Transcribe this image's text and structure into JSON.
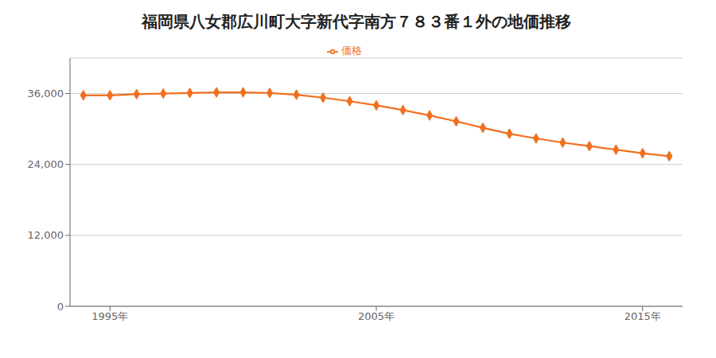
{
  "chart_data": {
    "type": "line",
    "title": "福岡県八女郡広川町大字新代字南方７８３番１外の地価推移",
    "x": [
      1994,
      1995,
      1996,
      1997,
      1998,
      1999,
      2000,
      2001,
      2002,
      2003,
      2004,
      2005,
      2006,
      2007,
      2008,
      2009,
      2010,
      2011,
      2012,
      2013,
      2014,
      2015,
      2016
    ],
    "series": [
      {
        "name": "価格",
        "color": "#f07020",
        "marker": "diamond",
        "values": [
          35700,
          35700,
          35900,
          36000,
          36100,
          36200,
          36200,
          36100,
          35800,
          35300,
          34700,
          34000,
          33200,
          32300,
          31300,
          30200,
          29200,
          28400,
          27700,
          27100,
          26500,
          25900,
          25400
        ]
      }
    ],
    "xlim": [
      1993.5,
      2016.5
    ],
    "xticks": [
      {
        "value": 1995,
        "label": "1995年"
      },
      {
        "value": 2005,
        "label": "2005年"
      },
      {
        "value": 2015,
        "label": "2015年"
      }
    ],
    "ylim": [
      0,
      42000
    ],
    "yticks": [
      0,
      {
        "value": 12000,
        "label": "12,000"
      },
      {
        "value": 24000,
        "label": "24,000"
      },
      {
        "value": 36000,
        "label": "36,000"
      }
    ],
    "grid": true,
    "legend": "top"
  }
}
